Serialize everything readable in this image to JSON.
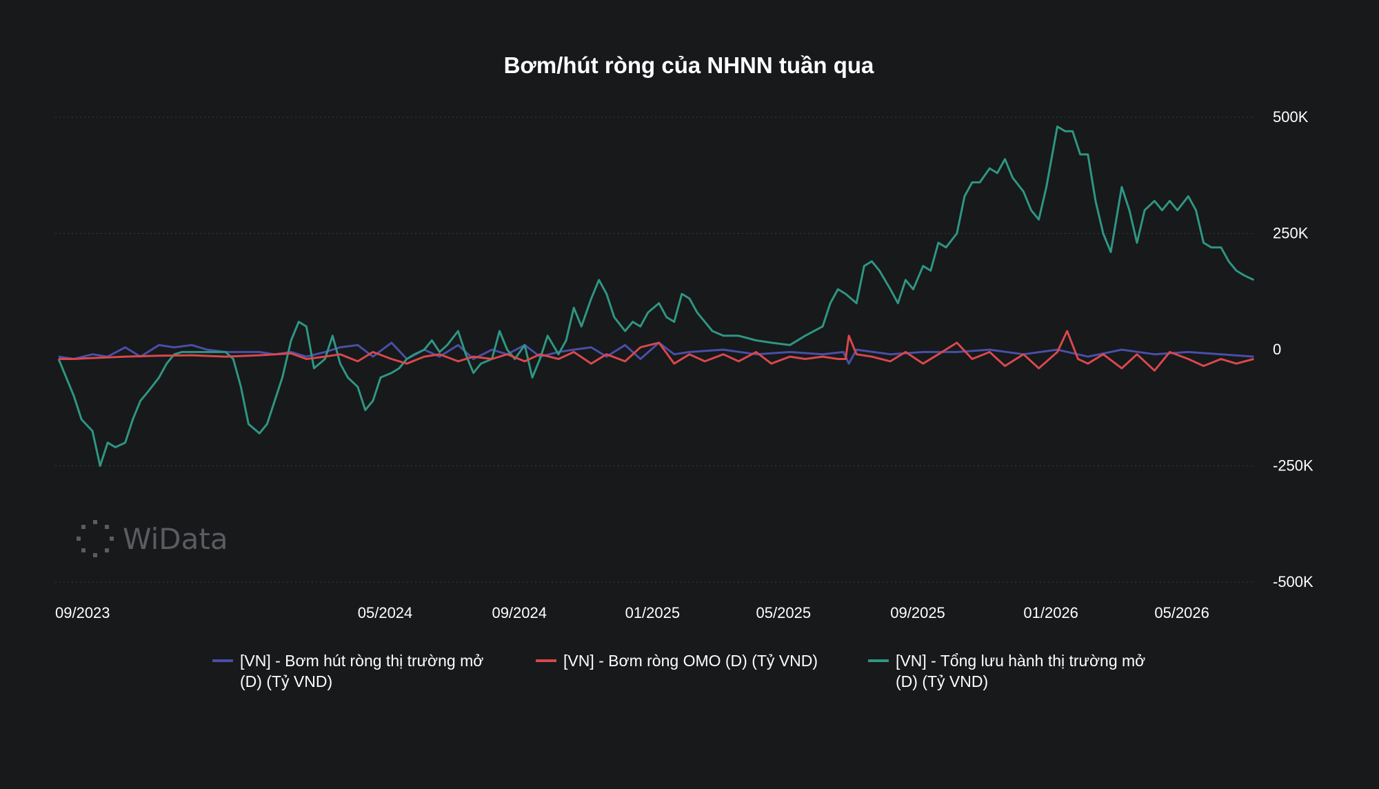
{
  "watermark": "WiData",
  "colors": {
    "background": "#17191b",
    "grid": "#3a3c40",
    "series": [
      "#4a4fa8",
      "#d9484c",
      "#2f9683"
    ]
  },
  "chart_data": {
    "type": "line",
    "title": "Bơm/hút ròng của NHNN tuần qua",
    "xlabel": "",
    "ylabel": "",
    "x_range": [
      "2023-08-01",
      "2026-08-01"
    ],
    "x_ticks": [
      "09/2023",
      "05/2024",
      "09/2024",
      "01/2025",
      "05/2025",
      "09/2025",
      "01/2026",
      "05/2026"
    ],
    "y_ticks": [
      "500K",
      "250K",
      "0",
      "-250K",
      "-500K"
    ],
    "ylim": [
      -500000,
      500000
    ],
    "grid": true,
    "y_axis_side": "right",
    "legend_position": "bottom",
    "series": [
      {
        "name": "[VN] - Bơm hút ròng thị trường mở (D) (Tỷ VND)",
        "color": "#4a4fa8",
        "points": [
          [
            "2023-08-01",
            -15000
          ],
          [
            "2023-08-15",
            -20000
          ],
          [
            "2023-09-01",
            -10000
          ],
          [
            "2023-09-15",
            -15000
          ],
          [
            "2023-10-01",
            5000
          ],
          [
            "2023-10-15",
            -15000
          ],
          [
            "2023-11-01",
            10000
          ],
          [
            "2023-11-15",
            5000
          ],
          [
            "2023-12-01",
            10000
          ],
          [
            "2023-12-15",
            0
          ],
          [
            "2024-01-01",
            -5000
          ],
          [
            "2024-01-15",
            -5000
          ],
          [
            "2024-02-01",
            -5000
          ],
          [
            "2024-02-15",
            -10000
          ],
          [
            "2024-03-01",
            -5000
          ],
          [
            "2024-03-15",
            -15000
          ],
          [
            "2024-04-01",
            -5000
          ],
          [
            "2024-04-15",
            5000
          ],
          [
            "2024-05-01",
            10000
          ],
          [
            "2024-05-15",
            -15000
          ],
          [
            "2024-06-01",
            15000
          ],
          [
            "2024-06-15",
            -20000
          ],
          [
            "2024-07-01",
            0
          ],
          [
            "2024-07-15",
            -15000
          ],
          [
            "2024-08-01",
            10000
          ],
          [
            "2024-08-15",
            -20000
          ],
          [
            "2024-09-01",
            0
          ],
          [
            "2024-09-15",
            -10000
          ],
          [
            "2024-10-01",
            10000
          ],
          [
            "2024-10-15",
            -15000
          ],
          [
            "2024-11-01",
            -5000
          ],
          [
            "2024-11-15",
            0
          ],
          [
            "2024-12-01",
            5000
          ],
          [
            "2024-12-15",
            -15000
          ],
          [
            "2025-01-01",
            10000
          ],
          [
            "2025-01-15",
            -20000
          ],
          [
            "2025-02-01",
            15000
          ],
          [
            "2025-02-15",
            -10000
          ],
          [
            "2025-03-01",
            -5000
          ],
          [
            "2025-04-01",
            0
          ],
          [
            "2025-05-01",
            -10000
          ],
          [
            "2025-06-01",
            -5000
          ],
          [
            "2025-07-01",
            -10000
          ],
          [
            "2025-07-20",
            -5000
          ],
          [
            "2025-07-25",
            -30000
          ],
          [
            "2025-08-01",
            0
          ],
          [
            "2025-09-01",
            -10000
          ],
          [
            "2025-10-01",
            -5000
          ],
          [
            "2025-11-01",
            -5000
          ],
          [
            "2025-12-01",
            0
          ],
          [
            "2026-01-01",
            -10000
          ],
          [
            "2026-02-01",
            0
          ],
          [
            "2026-03-01",
            -15000
          ],
          [
            "2026-04-01",
            0
          ],
          [
            "2026-05-01",
            -10000
          ],
          [
            "2026-06-01",
            -5000
          ],
          [
            "2026-07-01",
            -10000
          ],
          [
            "2026-07-31",
            -15000
          ]
        ]
      },
      {
        "name": "[VN] - Bơm ròng OMO (D) (Tỷ VND)",
        "color": "#d9484c",
        "points": [
          [
            "2023-08-01",
            -20000
          ],
          [
            "2023-08-15",
            -20000
          ],
          [
            "2023-09-01",
            -18000
          ],
          [
            "2023-10-01",
            -15000
          ],
          [
            "2023-11-01",
            -13000
          ],
          [
            "2023-12-01",
            -12000
          ],
          [
            "2024-01-01",
            -15000
          ],
          [
            "2024-02-01",
            -12000
          ],
          [
            "2024-03-01",
            -8000
          ],
          [
            "2024-03-15",
            -20000
          ],
          [
            "2024-04-01",
            -15000
          ],
          [
            "2024-04-15",
            -10000
          ],
          [
            "2024-05-01",
            -25000
          ],
          [
            "2024-05-15",
            -5000
          ],
          [
            "2024-06-01",
            -20000
          ],
          [
            "2024-06-15",
            -30000
          ],
          [
            "2024-07-01",
            -15000
          ],
          [
            "2024-07-15",
            -10000
          ],
          [
            "2024-08-01",
            -25000
          ],
          [
            "2024-08-15",
            -15000
          ],
          [
            "2024-09-01",
            -20000
          ],
          [
            "2024-09-15",
            -10000
          ],
          [
            "2024-10-01",
            -25000
          ],
          [
            "2024-10-15",
            -10000
          ],
          [
            "2024-11-01",
            -20000
          ],
          [
            "2024-11-15",
            -5000
          ],
          [
            "2024-12-01",
            -30000
          ],
          [
            "2024-12-15",
            -10000
          ],
          [
            "2025-01-01",
            -25000
          ],
          [
            "2025-01-15",
            5000
          ],
          [
            "2025-02-01",
            15000
          ],
          [
            "2025-02-15",
            -30000
          ],
          [
            "2025-03-01",
            -10000
          ],
          [
            "2025-03-15",
            -25000
          ],
          [
            "2025-04-01",
            -10000
          ],
          [
            "2025-04-15",
            -25000
          ],
          [
            "2025-05-01",
            -5000
          ],
          [
            "2025-05-15",
            -30000
          ],
          [
            "2025-06-01",
            -15000
          ],
          [
            "2025-06-15",
            -20000
          ],
          [
            "2025-07-01",
            -15000
          ],
          [
            "2025-07-15",
            -20000
          ],
          [
            "2025-07-22",
            -20000
          ],
          [
            "2025-07-25",
            30000
          ],
          [
            "2025-08-01",
            -10000
          ],
          [
            "2025-08-15",
            -15000
          ],
          [
            "2025-09-01",
            -25000
          ],
          [
            "2025-09-15",
            -5000
          ],
          [
            "2025-10-01",
            -30000
          ],
          [
            "2025-10-15",
            -10000
          ],
          [
            "2025-11-01",
            15000
          ],
          [
            "2025-11-15",
            -20000
          ],
          [
            "2025-12-01",
            -5000
          ],
          [
            "2025-12-15",
            -35000
          ],
          [
            "2026-01-01",
            -10000
          ],
          [
            "2026-01-15",
            -40000
          ],
          [
            "2026-02-01",
            -5000
          ],
          [
            "2026-02-10",
            40000
          ],
          [
            "2026-02-20",
            -20000
          ],
          [
            "2026-03-01",
            -30000
          ],
          [
            "2026-03-15",
            -10000
          ],
          [
            "2026-04-01",
            -40000
          ],
          [
            "2026-04-15",
            -10000
          ],
          [
            "2026-05-01",
            -45000
          ],
          [
            "2026-05-15",
            -5000
          ],
          [
            "2026-06-01",
            -20000
          ],
          [
            "2026-06-15",
            -35000
          ],
          [
            "2026-07-01",
            -20000
          ],
          [
            "2026-07-15",
            -30000
          ],
          [
            "2026-07-31",
            -20000
          ]
        ]
      },
      {
        "name": "[VN] - Tổng lưu hành thị trường mở (D) (Tỷ VND)",
        "color": "#2f9683",
        "points": [
          [
            "2023-08-01",
            -20000
          ],
          [
            "2023-08-08",
            -60000
          ],
          [
            "2023-08-15",
            -100000
          ],
          [
            "2023-08-22",
            -150000
          ],
          [
            "2023-09-01",
            -175000
          ],
          [
            "2023-09-08",
            -250000
          ],
          [
            "2023-09-15",
            -200000
          ],
          [
            "2023-09-22",
            -210000
          ],
          [
            "2023-10-01",
            -200000
          ],
          [
            "2023-10-08",
            -150000
          ],
          [
            "2023-10-15",
            -110000
          ],
          [
            "2023-10-22",
            -90000
          ],
          [
            "2023-11-01",
            -60000
          ],
          [
            "2023-11-08",
            -30000
          ],
          [
            "2023-11-15",
            -10000
          ],
          [
            "2023-11-22",
            -5000
          ],
          [
            "2023-12-01",
            -5000
          ],
          [
            "2023-12-15",
            -5000
          ],
          [
            "2024-01-01",
            -5000
          ],
          [
            "2024-01-08",
            -20000
          ],
          [
            "2024-01-15",
            -80000
          ],
          [
            "2024-01-22",
            -160000
          ],
          [
            "2024-02-01",
            -180000
          ],
          [
            "2024-02-08",
            -160000
          ],
          [
            "2024-02-15",
            -110000
          ],
          [
            "2024-02-22",
            -60000
          ],
          [
            "2024-03-01",
            20000
          ],
          [
            "2024-03-08",
            60000
          ],
          [
            "2024-03-15",
            50000
          ],
          [
            "2024-03-22",
            -40000
          ],
          [
            "2024-04-01",
            -20000
          ],
          [
            "2024-04-08",
            30000
          ],
          [
            "2024-04-15",
            -30000
          ],
          [
            "2024-04-22",
            -60000
          ],
          [
            "2024-05-01",
            -80000
          ],
          [
            "2024-05-08",
            -130000
          ],
          [
            "2024-05-15",
            -110000
          ],
          [
            "2024-05-22",
            -60000
          ],
          [
            "2024-06-01",
            -50000
          ],
          [
            "2024-06-08",
            -40000
          ],
          [
            "2024-06-15",
            -20000
          ],
          [
            "2024-06-22",
            -10000
          ],
          [
            "2024-07-01",
            0
          ],
          [
            "2024-07-08",
            20000
          ],
          [
            "2024-07-15",
            -5000
          ],
          [
            "2024-07-22",
            10000
          ],
          [
            "2024-08-01",
            40000
          ],
          [
            "2024-08-08",
            -10000
          ],
          [
            "2024-08-15",
            -50000
          ],
          [
            "2024-08-22",
            -30000
          ],
          [
            "2024-09-01",
            -20000
          ],
          [
            "2024-09-08",
            40000
          ],
          [
            "2024-09-15",
            0
          ],
          [
            "2024-09-22",
            -20000
          ],
          [
            "2024-10-01",
            10000
          ],
          [
            "2024-10-08",
            -60000
          ],
          [
            "2024-10-15",
            -20000
          ],
          [
            "2024-10-22",
            30000
          ],
          [
            "2024-11-01",
            -10000
          ],
          [
            "2024-11-08",
            20000
          ],
          [
            "2024-11-15",
            90000
          ],
          [
            "2024-11-22",
            50000
          ],
          [
            "2024-12-01",
            110000
          ],
          [
            "2024-12-08",
            150000
          ],
          [
            "2024-12-15",
            120000
          ],
          [
            "2024-12-22",
            70000
          ],
          [
            "2025-01-01",
            40000
          ],
          [
            "2025-01-08",
            60000
          ],
          [
            "2025-01-15",
            50000
          ],
          [
            "2025-01-22",
            80000
          ],
          [
            "2025-02-01",
            100000
          ],
          [
            "2025-02-08",
            70000
          ],
          [
            "2025-02-15",
            60000
          ],
          [
            "2025-02-22",
            120000
          ],
          [
            "2025-03-01",
            110000
          ],
          [
            "2025-03-08",
            80000
          ],
          [
            "2025-03-15",
            60000
          ],
          [
            "2025-03-22",
            40000
          ],
          [
            "2025-04-01",
            30000
          ],
          [
            "2025-04-15",
            30000
          ],
          [
            "2025-05-01",
            20000
          ],
          [
            "2025-05-15",
            15000
          ],
          [
            "2025-06-01",
            10000
          ],
          [
            "2025-06-15",
            30000
          ],
          [
            "2025-07-01",
            50000
          ],
          [
            "2025-07-08",
            100000
          ],
          [
            "2025-07-15",
            130000
          ],
          [
            "2025-07-22",
            120000
          ],
          [
            "2025-08-01",
            100000
          ],
          [
            "2025-08-08",
            180000
          ],
          [
            "2025-08-15",
            190000
          ],
          [
            "2025-08-22",
            170000
          ],
          [
            "2025-09-01",
            130000
          ],
          [
            "2025-09-08",
            100000
          ],
          [
            "2025-09-15",
            150000
          ],
          [
            "2025-09-22",
            130000
          ],
          [
            "2025-10-01",
            180000
          ],
          [
            "2025-10-08",
            170000
          ],
          [
            "2025-10-15",
            230000
          ],
          [
            "2025-10-22",
            220000
          ],
          [
            "2025-11-01",
            250000
          ],
          [
            "2025-11-08",
            330000
          ],
          [
            "2025-11-15",
            360000
          ],
          [
            "2025-11-22",
            360000
          ],
          [
            "2025-12-01",
            390000
          ],
          [
            "2025-12-08",
            380000
          ],
          [
            "2025-12-15",
            410000
          ],
          [
            "2025-12-22",
            370000
          ],
          [
            "2026-01-01",
            340000
          ],
          [
            "2026-01-08",
            300000
          ],
          [
            "2026-01-15",
            280000
          ],
          [
            "2026-01-22",
            350000
          ],
          [
            "2026-02-01",
            480000
          ],
          [
            "2026-02-08",
            470000
          ],
          [
            "2026-02-15",
            470000
          ],
          [
            "2026-02-22",
            420000
          ],
          [
            "2026-03-01",
            420000
          ],
          [
            "2026-03-08",
            320000
          ],
          [
            "2026-03-15",
            250000
          ],
          [
            "2026-03-22",
            210000
          ],
          [
            "2026-04-01",
            350000
          ],
          [
            "2026-04-08",
            300000
          ],
          [
            "2026-04-15",
            230000
          ],
          [
            "2026-04-22",
            300000
          ],
          [
            "2026-05-01",
            320000
          ],
          [
            "2026-05-08",
            300000
          ],
          [
            "2026-05-15",
            320000
          ],
          [
            "2026-05-22",
            300000
          ],
          [
            "2026-06-01",
            330000
          ],
          [
            "2026-06-08",
            300000
          ],
          [
            "2026-06-15",
            230000
          ],
          [
            "2026-06-22",
            220000
          ],
          [
            "2026-07-01",
            220000
          ],
          [
            "2026-07-08",
            190000
          ],
          [
            "2026-07-15",
            170000
          ],
          [
            "2026-07-22",
            160000
          ],
          [
            "2026-07-31",
            150000
          ]
        ]
      }
    ]
  }
}
